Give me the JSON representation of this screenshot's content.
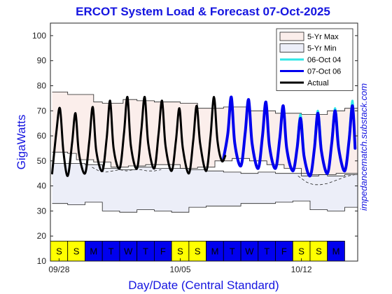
{
  "chart_data": {
    "type": "line",
    "title": "ERCOT System Load & Forecast 07-Oct-2025",
    "xlabel": "Day/Date (Central Standard)",
    "ylabel": "GigaWatts",
    "credit": "impedancematch.substack.com",
    "ylim": [
      10,
      105
    ],
    "yticks": [
      10,
      20,
      30,
      40,
      50,
      60,
      70,
      80,
      90,
      100
    ],
    "xlim": [
      0,
      17.75
    ],
    "xtick_labels": [
      {
        "day": 0.5,
        "label": "09/28"
      },
      {
        "day": 7.5,
        "label": "10/05"
      },
      {
        "day": 14.5,
        "label": "10/12"
      }
    ],
    "day_strip": [
      {
        "label": "S",
        "type": "weekend"
      },
      {
        "label": "S",
        "type": "weekend"
      },
      {
        "label": "M",
        "type": "weekday"
      },
      {
        "label": "T",
        "type": "weekday"
      },
      {
        "label": "W",
        "type": "weekday"
      },
      {
        "label": "T",
        "type": "weekday"
      },
      {
        "label": "F",
        "type": "weekday"
      },
      {
        "label": "S",
        "type": "weekend"
      },
      {
        "label": "S",
        "type": "weekend"
      },
      {
        "label": "M",
        "type": "weekday"
      },
      {
        "label": "T",
        "type": "weekday"
      },
      {
        "label": "W",
        "type": "weekday"
      },
      {
        "label": "T",
        "type": "weekday"
      },
      {
        "label": "F",
        "type": "weekday"
      },
      {
        "label": "S",
        "type": "weekend"
      },
      {
        "label": "S",
        "type": "weekend"
      },
      {
        "label": "M",
        "type": "weekday"
      }
    ],
    "colors": {
      "weekend": "#ffff00",
      "weekday": "#0000ee",
      "max_band": "#fbeeeb",
      "min_band": "#eceef8",
      "forecast_old": "#2ee6e6",
      "forecast_new": "#0000ee",
      "actual": "#000000",
      "title": "#1515e0"
    },
    "legend": {
      "position": "top-right",
      "entries": [
        {
          "label": "5-Yr Max",
          "kind": "patch",
          "color": "#fbeeeb"
        },
        {
          "label": "5-Yr Min",
          "kind": "patch",
          "color": "#eceef8"
        },
        {
          "label": "06-Oct 04",
          "kind": "line",
          "color": "#2ee6e6"
        },
        {
          "label": "07-Oct 06",
          "kind": "line",
          "color": "#0000ee"
        },
        {
          "label": "Actual",
          "kind": "line",
          "color": "#000000"
        }
      ]
    },
    "five_yr_max": {
      "x": [
        0.1,
        0.1,
        1.0,
        1.0,
        2.5,
        2.5,
        3.0,
        3.0,
        4.2,
        4.2,
        5.0,
        5.0,
        6.0,
        6.0,
        7.5,
        7.5,
        8.5,
        8.5,
        10.0,
        10.0,
        11.5,
        11.5,
        13.0,
        13.0,
        14.5,
        14.5,
        16.0,
        16.0,
        17.0,
        17.0,
        17.75
      ],
      "y": [
        77.5,
        77.5,
        77.5,
        76.5,
        76.5,
        73.5,
        73.5,
        73.0,
        73.0,
        74.5,
        74.5,
        74.0,
        74.0,
        73.5,
        73.5,
        73.0,
        73.0,
        71.0,
        71.0,
        71.5,
        71.5,
        70.0,
        70.0,
        69.0,
        69.0,
        68.5,
        68.5,
        70.0,
        70.0,
        71.0,
        71.0
      ]
    },
    "five_yr_max_low": {
      "x": [
        0.1,
        1.0,
        1.0,
        1.5,
        1.5,
        2.5,
        2.5,
        3.5,
        3.5,
        4.5,
        4.5,
        5.5,
        5.5,
        6.5,
        6.5,
        7.5,
        7.5,
        8.5,
        8.5,
        9.5,
        9.5,
        10.5,
        10.5,
        11.5,
        11.5,
        12.5,
        12.5,
        13.5,
        13.5,
        14.5,
        14.5,
        15.5,
        15.5,
        16.5,
        16.5,
        17.75
      ],
      "y": [
        53.5,
        53.5,
        53.0,
        53.0,
        50.5,
        50.5,
        49.5,
        49.5,
        47.5,
        47.5,
        48.0,
        48.0,
        48.5,
        48.5,
        48.5,
        48.5,
        47.0,
        47.0,
        47.5,
        47.5,
        50.0,
        50.0,
        51.0,
        51.0,
        50.0,
        50.0,
        48.5,
        48.5,
        47.0,
        47.0,
        44.0,
        44.0,
        44.5,
        44.5,
        45.0,
        45.0
      ]
    },
    "five_yr_min_high": {
      "x": [
        0.1,
        1.0,
        1.0,
        2.0,
        2.0,
        3.0,
        3.0,
        4.0,
        4.0,
        5.0,
        5.0,
        6.0,
        6.0,
        7.0,
        7.0,
        8.0,
        8.0,
        9.0,
        9.0,
        10.0,
        10.0,
        11.0,
        11.0,
        12.0,
        12.0,
        13.0,
        13.0,
        14.0,
        14.0,
        15.0,
        15.0,
        16.0,
        16.0,
        17.0,
        17.0,
        17.75
      ],
      "y": [
        49.0,
        49.0,
        49.0,
        49.0,
        48.5,
        48.5,
        47.0,
        47.0,
        46.5,
        46.5,
        47.5,
        47.5,
        47.0,
        47.0,
        47.0,
        47.0,
        46.5,
        46.5,
        46.0,
        46.0,
        45.5,
        45.5,
        45.0,
        45.0,
        45.5,
        45.5,
        45.0,
        45.0,
        45.0,
        45.0,
        44.5,
        44.5,
        44.0,
        44.0,
        44.5,
        44.5
      ]
    },
    "five_yr_min": {
      "x": [
        0.1,
        1.0,
        1.0,
        2.0,
        2.0,
        3.0,
        3.0,
        4.0,
        4.0,
        5.0,
        5.0,
        6.0,
        6.0,
        7.0,
        7.0,
        8.0,
        8.0,
        9.0,
        9.0,
        10.0,
        10.0,
        11.0,
        11.0,
        12.0,
        12.0,
        13.0,
        13.0,
        14.0,
        14.0,
        15.0,
        15.0,
        16.0,
        16.0,
        17.0,
        17.0,
        17.75
      ],
      "y": [
        33.0,
        33.0,
        32.5,
        32.5,
        33.5,
        33.5,
        30.0,
        30.0,
        29.5,
        29.5,
        30.5,
        30.5,
        30.0,
        30.0,
        29.5,
        29.5,
        31.5,
        31.5,
        32.0,
        32.0,
        32.0,
        32.0,
        33.0,
        33.0,
        33.0,
        33.0,
        33.5,
        33.5,
        34.0,
        34.0,
        30.5,
        30.5,
        30.0,
        30.0,
        31.5,
        31.5
      ]
    },
    "dashed_min": {
      "x": [
        2.4,
        2.8,
        3.2,
        3.6,
        4.0,
        4.4,
        4.8,
        5.2,
        5.6,
        6.0,
        6.4,
        14.3,
        14.8,
        15.2,
        15.6,
        16.0,
        16.4,
        16.8,
        17.2,
        17.6
      ],
      "y": [
        47.5,
        46.0,
        45.5,
        46.0,
        46.5,
        46.0,
        46.5,
        46.5,
        46.0,
        46.0,
        46.5,
        44.0,
        41.5,
        40.5,
        40.5,
        41.0,
        42.0,
        43.0,
        44.0,
        44.5
      ]
    },
    "series": [
      {
        "name": "Actual",
        "x": [
          0.1,
          0.35,
          0.55,
          0.75,
          1.0,
          1.25,
          1.45,
          1.65,
          2.0,
          2.25,
          2.45,
          2.65,
          3.0,
          3.25,
          3.45,
          3.65,
          4.0,
          4.25,
          4.45,
          4.65,
          5.0,
          5.25,
          5.45,
          5.65,
          6.0,
          6.25,
          6.45,
          6.65,
          7.0,
          7.25,
          7.45,
          7.65,
          8.0,
          8.25,
          8.45,
          8.65,
          9.0,
          9.25,
          9.45,
          9.65,
          9.9,
          10.1
        ],
        "y": [
          45,
          62,
          71,
          54,
          44,
          57,
          69,
          53,
          45,
          58,
          71.5,
          54,
          46,
          59,
          74,
          55,
          47,
          61,
          75.5,
          56,
          47,
          62,
          75.5,
          57,
          47,
          61,
          74,
          56,
          46,
          58,
          71,
          55,
          45,
          58,
          72,
          57,
          46,
          60,
          75.5,
          58,
          50,
          52
        ]
      },
      {
        "name": "07-Oct 06",
        "x": [
          10.0,
          10.25,
          10.45,
          10.65,
          11.0,
          11.25,
          11.45,
          11.65,
          12.0,
          12.25,
          12.45,
          12.65,
          13.0,
          13.25,
          13.45,
          13.65,
          14.0,
          14.25,
          14.45,
          14.65,
          15.0,
          15.25,
          15.45,
          15.65,
          16.0,
          16.25,
          16.45,
          16.65,
          17.0,
          17.25,
          17.45,
          17.6
        ],
        "y": [
          51,
          61,
          75.5,
          57,
          48,
          61,
          74.5,
          57,
          47,
          60,
          73.5,
          56,
          47,
          59,
          72,
          55,
          46,
          55,
          67,
          52,
          44,
          55,
          69,
          54,
          45,
          57,
          70,
          55,
          46,
          58,
          72,
          55
        ]
      },
      {
        "name": "06-Oct 04",
        "x": [
          14.25,
          14.45,
          14.65,
          15.25,
          15.45,
          15.65,
          16.25,
          16.45,
          16.65,
          17.25,
          17.45,
          17.6
        ],
        "y": [
          56,
          68.5,
          53,
          56,
          70,
          55,
          58,
          71,
          56,
          59,
          74,
          56
        ]
      }
    ]
  }
}
